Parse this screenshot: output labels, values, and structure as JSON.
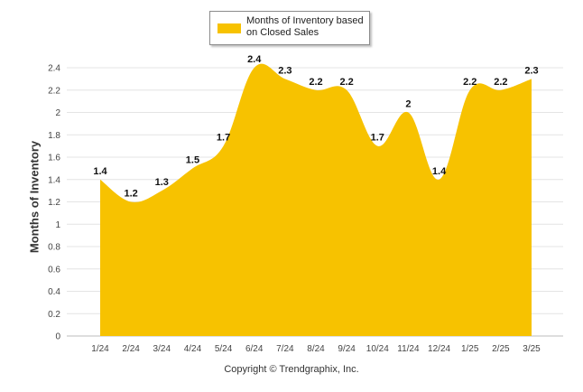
{
  "chart_data": {
    "type": "area",
    "categories": [
      "1/24",
      "2/24",
      "3/24",
      "4/24",
      "5/24",
      "6/24",
      "7/24",
      "8/24",
      "9/24",
      "10/24",
      "11/24",
      "12/24",
      "1/25",
      "2/25",
      "3/25"
    ],
    "series": [
      {
        "name": "Months of Inventory based on Closed Sales",
        "values": [
          1.4,
          1.2,
          1.3,
          1.5,
          1.7,
          2.4,
          2.3,
          2.2,
          2.2,
          1.7,
          2,
          1.4,
          2.2,
          2.2,
          2.3
        ],
        "color": "#f7c200"
      }
    ],
    "data_labels": [
      "1.4",
      "1.2",
      "1.3",
      "1.5",
      "1.7",
      "2.4",
      "2.3",
      "2.2",
      "2.2",
      "1.7",
      "2",
      "1.4",
      "2.2",
      "2.2",
      "2.3"
    ],
    "yticks": [
      "0",
      "0.2",
      "0.4",
      "0.6",
      "0.8",
      "1",
      "1.2",
      "1.4",
      "1.6",
      "1.8",
      "2",
      "2.2",
      "2.4"
    ],
    "ylim": [
      0,
      2.4
    ],
    "ylabel": "Months of Inventory",
    "xlabel": "",
    "grid": true,
    "legend_position": "top-center"
  },
  "legend": {
    "label": "Months of Inventory based on Closed Sales"
  },
  "footer": {
    "copyright": "Copyright © Trendgraphix, Inc."
  }
}
